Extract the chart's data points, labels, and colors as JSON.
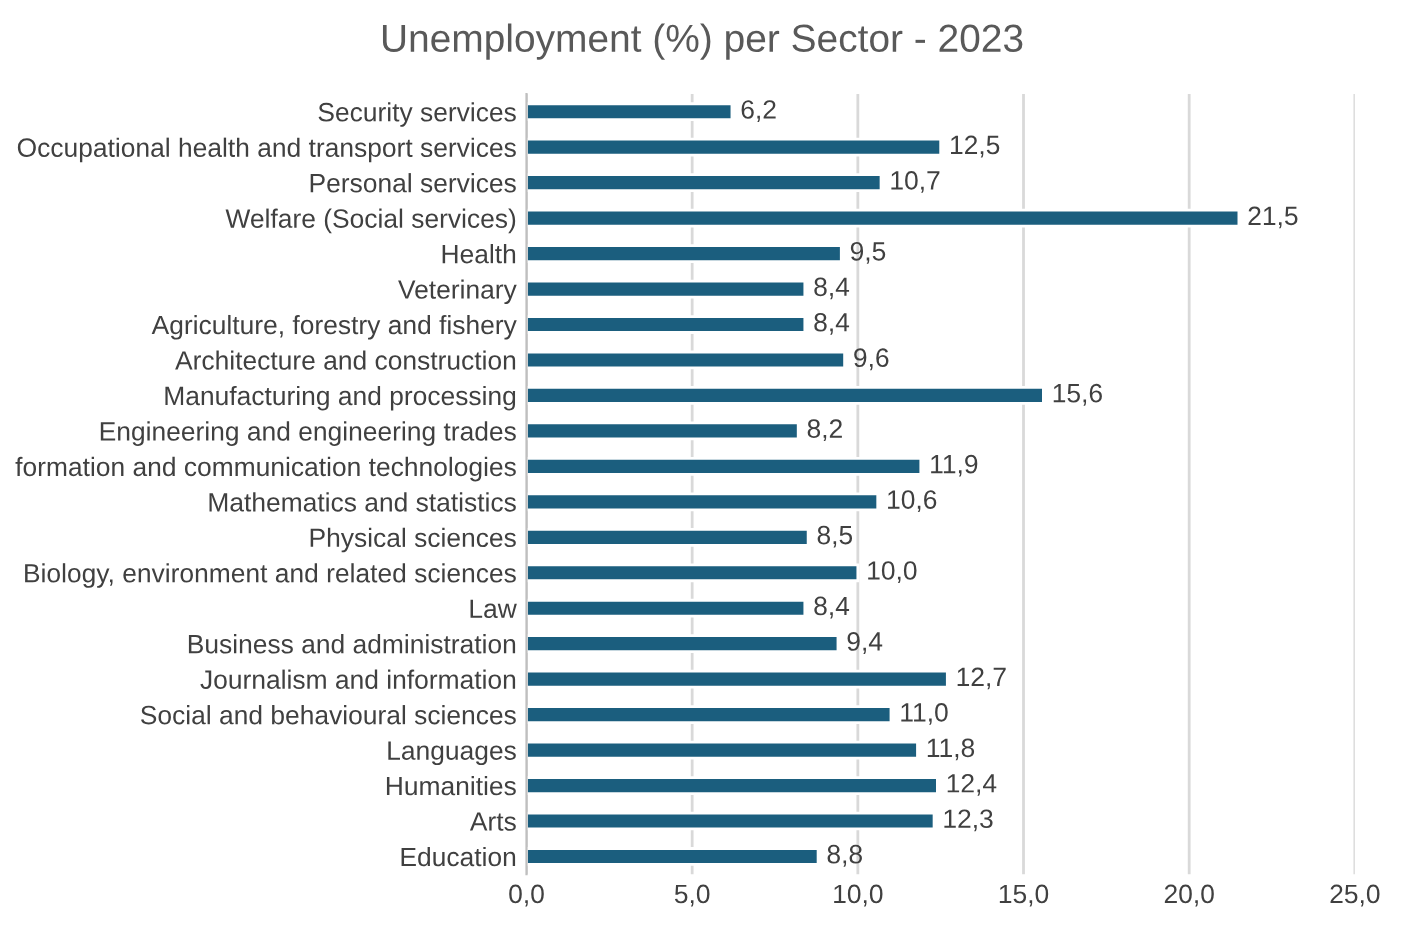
{
  "chart_data": {
    "type": "bar",
    "orientation": "horizontal",
    "title": "Unemployment (%) per Sector - 2023",
    "categories": [
      "Security services",
      "Occupational health and transport services",
      "Personal services",
      "Welfare (Social services)",
      "Health",
      "Veterinary",
      "Agriculture, forestry and fishery",
      "Architecture and construction",
      "Manufacturing and processing",
      "Engineering and engineering trades",
      "formation and communication technologies",
      "Mathematics and statistics",
      "Physical sciences",
      "Biology, environment and related sciences",
      "Law",
      "Business and administration",
      "Journalism and information",
      "Social and behavioural sciences",
      "Languages",
      "Humanities",
      "Arts",
      "Education"
    ],
    "values": [
      6.2,
      12.5,
      10.7,
      21.5,
      9.5,
      8.4,
      8.4,
      9.6,
      15.6,
      8.2,
      11.9,
      10.6,
      8.5,
      10.0,
      8.4,
      9.4,
      12.7,
      11.0,
      11.8,
      12.4,
      12.3,
      8.8
    ],
    "value_labels": [
      "6,2",
      "12,5",
      "10,7",
      "21,5",
      "9,5",
      "8,4",
      "8,4",
      "9,6",
      "15,6",
      "8,2",
      "11,9",
      "10,6",
      "8,5",
      "10,0",
      "8,4",
      "9,4",
      "12,7",
      "11,0",
      "11,8",
      "12,4",
      "12,3",
      "8,8"
    ],
    "color": "#1b5e7e",
    "xlim": [
      0,
      25
    ],
    "xticks": [
      {
        "value": 0,
        "label": "0,0"
      },
      {
        "value": 5,
        "label": "5,0"
      },
      {
        "value": 10,
        "label": "10,0"
      },
      {
        "value": 15,
        "label": "15,0"
      },
      {
        "value": 20,
        "label": "20,0"
      },
      {
        "value": 25,
        "label": "25,0"
      }
    ],
    "grid": "x",
    "legend": false
  }
}
